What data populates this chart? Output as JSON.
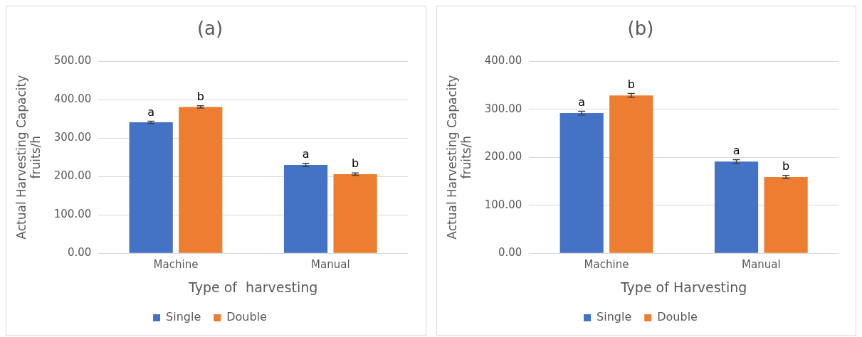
{
  "chart_data": [
    {
      "type": "bar",
      "title": "(a)",
      "xlabel": "Type of  harvesting",
      "ylabel": "Actual Harvesting Capacity\nfruits/h",
      "categories": [
        "Machine",
        "Manual"
      ],
      "series": [
        {
          "name": "Single",
          "color": "#4472c4",
          "values": [
            341,
            230
          ],
          "errors": [
            3,
            4
          ],
          "value_labels": [
            "a",
            "a"
          ]
        },
        {
          "name": "Double",
          "color": "#ed7d31",
          "values": [
            381,
            206
          ],
          "errors": [
            3,
            3
          ],
          "value_labels": [
            "b",
            "b"
          ]
        }
      ],
      "ylim": [
        0,
        500
      ],
      "yticks": [
        {
          "value": 0,
          "label": "0.00"
        },
        {
          "value": 100,
          "label": "100.00"
        },
        {
          "value": 200,
          "label": "200.00"
        },
        {
          "value": 300,
          "label": "300.00"
        },
        {
          "value": 400,
          "label": "400.00"
        },
        {
          "value": 500,
          "label": "500.00"
        }
      ],
      "grid": "y",
      "legend": "bottom"
    },
    {
      "type": "bar",
      "title": "(b)",
      "xlabel": "Type of Harvesting",
      "ylabel": "Actual Harvesting Capacity\nfruits/h",
      "categories": [
        "Machine",
        "Manual"
      ],
      "series": [
        {
          "name": "Single",
          "color": "#4472c4",
          "values": [
            292,
            191
          ],
          "errors": [
            4,
            4
          ],
          "value_labels": [
            "a",
            "a"
          ]
        },
        {
          "name": "Double",
          "color": "#ed7d31",
          "values": [
            329,
            159
          ],
          "errors": [
            4,
            3
          ],
          "value_labels": [
            "b",
            "b"
          ]
        }
      ],
      "ylim": [
        0,
        400
      ],
      "yticks": [
        {
          "value": 0,
          "label": "0.00"
        },
        {
          "value": 100,
          "label": "100.00"
        },
        {
          "value": 200,
          "label": "200.00"
        },
        {
          "value": 300,
          "label": "300.00"
        },
        {
          "value": 400,
          "label": "400.00"
        }
      ],
      "grid": "y",
      "legend": "bottom"
    }
  ]
}
